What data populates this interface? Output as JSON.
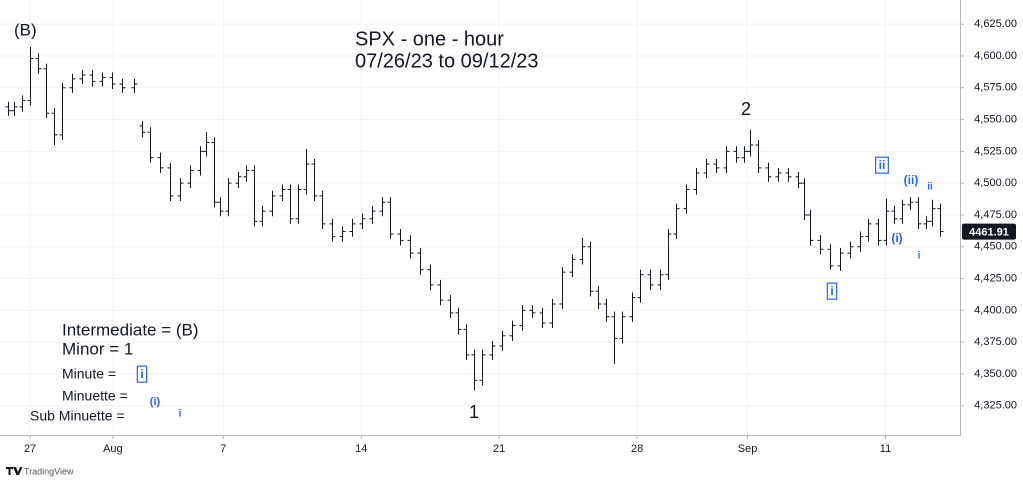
{
  "chart_data": {
    "type": "ohlc",
    "title": "SPX - one - hour",
    "subtitle": "07/26/23 to 09/12/23",
    "color": "#131722",
    "x": [
      0.2,
      0.42,
      0.71,
      1.0,
      1.29,
      1.58,
      1.87,
      2.16,
      2.52,
      2.88,
      3.25,
      3.61,
      3.97,
      4.33,
      4.77,
      5.06,
      5.35,
      5.71,
      6.07,
      6.43,
      6.8,
      7.16,
      7.38,
      7.67,
      7.88,
      8.17,
      8.54,
      8.83,
      9.12,
      9.41,
      9.77,
      10.13,
      10.42,
      10.71,
      11.0,
      11.29,
      11.58,
      11.94,
      12.3,
      12.67,
      13.03,
      13.39,
      13.75,
      14.04,
      14.41,
      14.77,
      15.13,
      15.49,
      15.86,
      16.22,
      16.51,
      16.8,
      17.09,
      17.38,
      17.74,
      18.1,
      18.46,
      18.83,
      19.19,
      19.55,
      19.91,
      20.28,
      20.64,
      21.0,
      21.29,
      21.58,
      21.87,
      22.16,
      22.45,
      22.81,
      23.1,
      23.46,
      23.83,
      24.12,
      24.41,
      24.77,
      25.13,
      25.49,
      25.86,
      26.22,
      26.58,
      26.87,
      27.09,
      27.38,
      27.74,
      28.1,
      28.46,
      28.83,
      29.04,
      29.26,
      29.62,
      29.99,
      30.35,
      30.71,
      31.07,
      31.36,
      31.72,
      32.01,
      32.3,
      32.59,
      32.88,
      33.17,
      33.46,
      33.68,
      33.97
    ],
    "open": [
      4560,
      4557,
      4560,
      4565,
      4598,
      4590,
      4555,
      4538,
      4575,
      4582,
      4585,
      4580,
      4583,
      4578,
      4575,
      4545,
      4540,
      4520,
      4512,
      4490,
      4500,
      4510,
      4525,
      4532,
      4485,
      4478,
      4500,
      4505,
      4510,
      4470,
      4478,
      4490,
      4495,
      4472,
      4495,
      4515,
      4490,
      4468,
      4458,
      4462,
      4468,
      4472,
      4478,
      4485,
      4460,
      4455,
      4445,
      4432,
      4420,
      4408,
      4398,
      4385,
      4365,
      4345,
      4365,
      4372,
      4380,
      4388,
      4400,
      4398,
      4390,
      4405,
      4430,
      4440,
      4450,
      4415,
      4405,
      4395,
      4378,
      4395,
      4410,
      4428,
      4420,
      4428,
      4460,
      4480,
      4495,
      4508,
      4515,
      4512,
      4525,
      4520,
      4525,
      4530,
      4512,
      4505,
      4508,
      4505,
      4500,
      4475,
      4455,
      4448,
      4435,
      4445,
      4450,
      4458,
      4468,
      4455,
      4478,
      4472,
      4483,
      4485,
      4468,
      4470,
      4480
    ],
    "high": [
      4564,
      4564,
      4569,
      4607,
      4602,
      4594,
      4559,
      4579,
      4586,
      4589,
      4589,
      4587,
      4587,
      4582,
      4582,
      4549,
      4544,
      4524,
      4516,
      4504,
      4514,
      4529,
      4540,
      4536,
      4489,
      4504,
      4509,
      4514,
      4514,
      4482,
      4494,
      4499,
      4499,
      4499,
      4527,
      4519,
      4494,
      4472,
      4466,
      4472,
      4476,
      4482,
      4489,
      4489,
      4464,
      4459,
      4449,
      4436,
      4424,
      4412,
      4402,
      4389,
      4369,
      4369,
      4376,
      4384,
      4392,
      4404,
      4404,
      4402,
      4409,
      4434,
      4444,
      4457,
      4454,
      4419,
      4409,
      4399,
      4399,
      4414,
      4432,
      4432,
      4432,
      4464,
      4484,
      4499,
      4512,
      4519,
      4519,
      4529,
      4529,
      4529,
      4542,
      4534,
      4516,
      4512,
      4512,
      4509,
      4504,
      4479,
      4459,
      4452,
      4449,
      4454,
      4462,
      4472,
      4472,
      4488,
      4482,
      4487,
      4489,
      4489,
      4474,
      4487,
      4484
    ],
    "low": [
      4553,
      4553,
      4556,
      4561,
      4586,
      4551,
      4530,
      4534,
      4571,
      4578,
      4576,
      4576,
      4574,
      4571,
      4571,
      4536,
      4516,
      4508,
      4486,
      4486,
      4496,
      4506,
      4521,
      4481,
      4474,
      4474,
      4496,
      4501,
      4466,
      4466,
      4474,
      4486,
      4468,
      4468,
      4491,
      4486,
      4464,
      4454,
      4454,
      4458,
      4464,
      4468,
      4474,
      4456,
      4451,
      4441,
      4428,
      4416,
      4404,
      4394,
      4381,
      4361,
      4337,
      4341,
      4361,
      4368,
      4376,
      4384,
      4394,
      4386,
      4386,
      4401,
      4426,
      4436,
      4411,
      4401,
      4391,
      4358,
      4374,
      4391,
      4406,
      4416,
      4416,
      4424,
      4456,
      4476,
      4491,
      4504,
      4508,
      4508,
      4516,
      4516,
      4521,
      4508,
      4501,
      4501,
      4501,
      4496,
      4471,
      4451,
      4444,
      4432,
      4431,
      4441,
      4446,
      4454,
      4451,
      4451,
      4468,
      4468,
      4479,
      4464,
      4464,
      4466,
      4458
    ],
    "close": [
      4557,
      4560,
      4565,
      4598,
      4590,
      4555,
      4538,
      4575,
      4582,
      4585,
      4580,
      4583,
      4578,
      4575,
      4578,
      4540,
      4520,
      4512,
      4490,
      4500,
      4510,
      4525,
      4532,
      4485,
      4478,
      4500,
      4505,
      4510,
      4470,
      4478,
      4490,
      4495,
      4472,
      4495,
      4515,
      4490,
      4468,
      4458,
      4462,
      4468,
      4472,
      4478,
      4485,
      4460,
      4455,
      4445,
      4432,
      4420,
      4408,
      4398,
      4385,
      4365,
      4345,
      4365,
      4372,
      4380,
      4388,
      4400,
      4398,
      4390,
      4405,
      4430,
      4440,
      4450,
      4415,
      4405,
      4395,
      4378,
      4395,
      4410,
      4428,
      4420,
      4428,
      4460,
      4480,
      4495,
      4508,
      4515,
      4512,
      4525,
      4520,
      4525,
      4530,
      4512,
      4505,
      4508,
      4505,
      4500,
      4475,
      4455,
      4448,
      4435,
      4445,
      4450,
      4458,
      4468,
      4455,
      4478,
      4472,
      4483,
      4485,
      4468,
      4470,
      4480,
      4462
    ],
    "xlim": [
      -0.09,
      34.7
    ],
    "xticks": [
      {
        "value": 1,
        "label": "27"
      },
      {
        "value": 4,
        "label": "Aug"
      },
      {
        "value": 8,
        "label": "7"
      },
      {
        "value": 13,
        "label": "14"
      },
      {
        "value": 18,
        "label": "21"
      },
      {
        "value": 23,
        "label": "28"
      },
      {
        "value": 27,
        "label": "Sep"
      },
      {
        "value": 32,
        "label": "11"
      }
    ],
    "ylim": [
      4302,
      4644
    ],
    "yticks": [
      {
        "value": 4325,
        "label": "4,325.00"
      },
      {
        "value": 4350,
        "label": "4,350.00"
      },
      {
        "value": 4375,
        "label": "4,375.00"
      },
      {
        "value": 4400,
        "label": "4,400.00"
      },
      {
        "value": 4425,
        "label": "4,425.00"
      },
      {
        "value": 4450,
        "label": "4,450.00"
      },
      {
        "value": 4475,
        "label": "4,475.00"
      },
      {
        "value": 4500,
        "label": "4,500.00"
      },
      {
        "value": 4525,
        "label": "4,525.00"
      },
      {
        "value": 4550,
        "label": "4,550.00"
      },
      {
        "value": 4575,
        "label": "4,575.00"
      },
      {
        "value": 4600,
        "label": "4,600.00"
      },
      {
        "value": 4625,
        "label": "4,625.00"
      }
    ],
    "grid": true,
    "last_price": 4461.91,
    "annotations": [
      {
        "text": "(B)"
      },
      {
        "text": "2"
      },
      {
        "text": "1"
      },
      {
        "text": "ii"
      },
      {
        "text": "(ii)"
      },
      {
        "text": "ii"
      },
      {
        "text": "(i)"
      },
      {
        "text": "i"
      },
      {
        "text": "i"
      }
    ],
    "key": [
      {
        "text": "Intermediate = (B)"
      },
      {
        "text": "Minor = 1"
      },
      {
        "text": "Minute =",
        "symbol": "i"
      },
      {
        "text": "Minuette =",
        "symbol": "(i)"
      },
      {
        "text": "Sub Minuette =",
        "symbol": "i"
      }
    ]
  },
  "footer": {
    "brand": "TradingView"
  }
}
